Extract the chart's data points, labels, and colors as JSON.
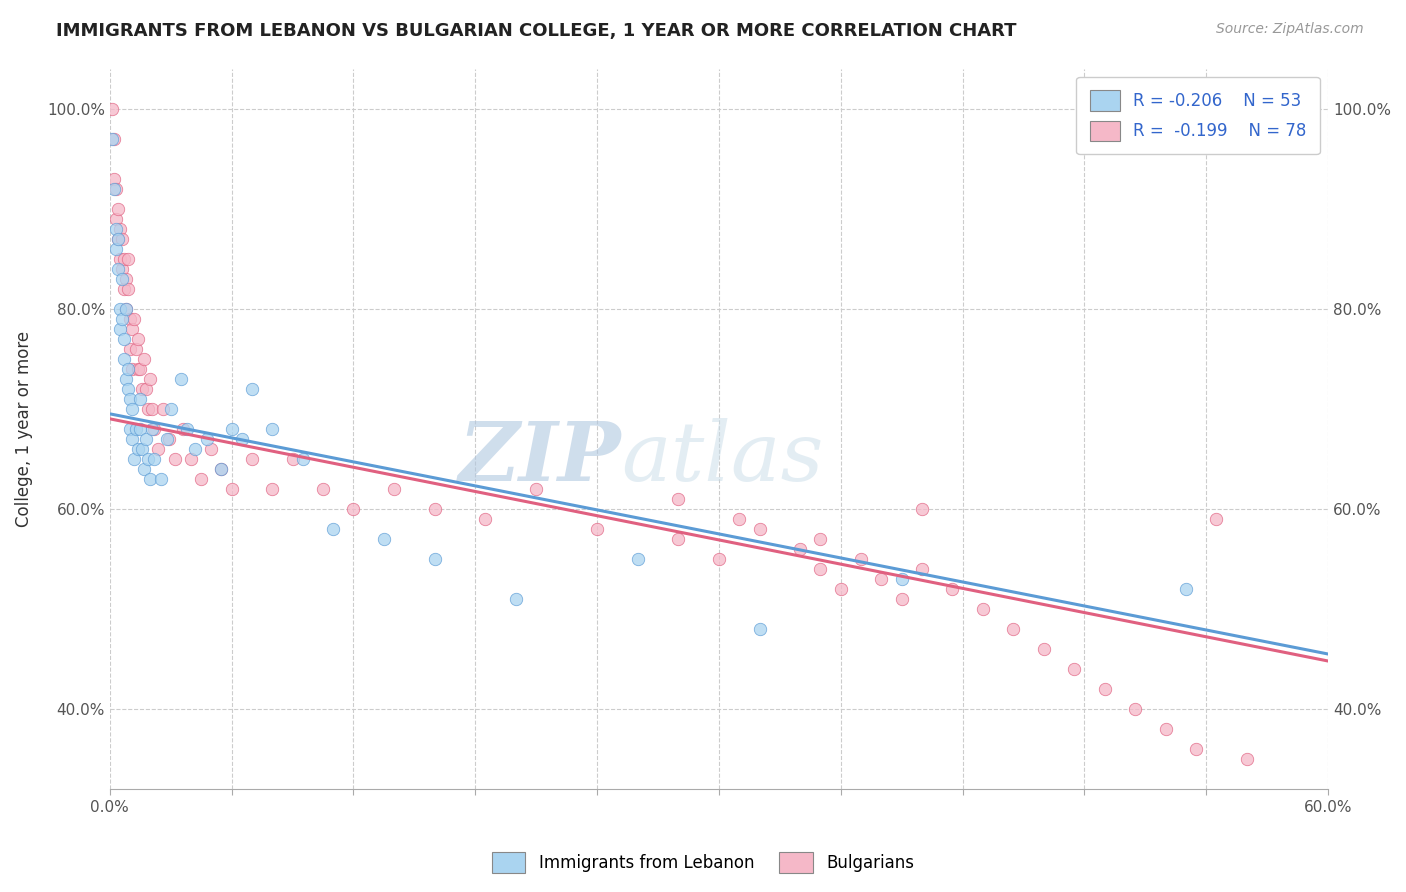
{
  "title": "IMMIGRANTS FROM LEBANON VS BULGARIAN COLLEGE, 1 YEAR OR MORE CORRELATION CHART",
  "source_text": "Source: ZipAtlas.com",
  "ylabel": "College, 1 year or more",
  "legend_labels": [
    "Immigrants from Lebanon",
    "Bulgarians"
  ],
  "legend_r": [
    "R = -0.206",
    "R =  -0.199"
  ],
  "legend_n": [
    "N = 53",
    "N = 78"
  ],
  "xlim": [
    0.0,
    0.6
  ],
  "ylim": [
    0.32,
    1.04
  ],
  "xticks": [
    0.0,
    0.06,
    0.12,
    0.18,
    0.24,
    0.3,
    0.36,
    0.42,
    0.48,
    0.54,
    0.6
  ],
  "xticklabels_show": [
    "0.0%",
    "",
    "",
    "",
    "",
    "",
    "",
    "",
    "",
    "",
    "60.0%"
  ],
  "yticks": [
    0.4,
    0.6,
    0.8,
    1.0
  ],
  "yticklabels": [
    "40.0%",
    "60.0%",
    "80.0%",
    "100.0%"
  ],
  "color_blue": "#aad4f0",
  "color_pink": "#f5b8c8",
  "color_line_blue": "#5b9bd5",
  "color_line_pink": "#e06080",
  "watermark_zip": "ZIP",
  "watermark_atlas": "atlas",
  "blue_scatter_x": [
    0.001,
    0.002,
    0.003,
    0.003,
    0.004,
    0.004,
    0.005,
    0.005,
    0.006,
    0.006,
    0.007,
    0.007,
    0.008,
    0.008,
    0.009,
    0.009,
    0.01,
    0.01,
    0.011,
    0.011,
    0.012,
    0.013,
    0.014,
    0.015,
    0.015,
    0.016,
    0.017,
    0.018,
    0.019,
    0.02,
    0.021,
    0.022,
    0.025,
    0.028,
    0.03,
    0.035,
    0.038,
    0.042,
    0.048,
    0.055,
    0.06,
    0.065,
    0.07,
    0.08,
    0.095,
    0.11,
    0.135,
    0.16,
    0.2,
    0.26,
    0.32,
    0.39,
    0.53
  ],
  "blue_scatter_y": [
    0.97,
    0.92,
    0.88,
    0.86,
    0.87,
    0.84,
    0.8,
    0.78,
    0.83,
    0.79,
    0.77,
    0.75,
    0.73,
    0.8,
    0.74,
    0.72,
    0.71,
    0.68,
    0.7,
    0.67,
    0.65,
    0.68,
    0.66,
    0.71,
    0.68,
    0.66,
    0.64,
    0.67,
    0.65,
    0.63,
    0.68,
    0.65,
    0.63,
    0.67,
    0.7,
    0.73,
    0.68,
    0.66,
    0.67,
    0.64,
    0.68,
    0.67,
    0.72,
    0.68,
    0.65,
    0.58,
    0.57,
    0.55,
    0.51,
    0.55,
    0.48,
    0.53,
    0.52
  ],
  "pink_scatter_x": [
    0.001,
    0.002,
    0.002,
    0.003,
    0.003,
    0.004,
    0.004,
    0.005,
    0.005,
    0.006,
    0.006,
    0.007,
    0.007,
    0.008,
    0.008,
    0.009,
    0.009,
    0.01,
    0.01,
    0.011,
    0.011,
    0.012,
    0.013,
    0.014,
    0.014,
    0.015,
    0.016,
    0.017,
    0.018,
    0.019,
    0.02,
    0.021,
    0.022,
    0.024,
    0.026,
    0.029,
    0.032,
    0.036,
    0.04,
    0.045,
    0.05,
    0.055,
    0.06,
    0.07,
    0.08,
    0.09,
    0.105,
    0.12,
    0.14,
    0.16,
    0.185,
    0.21,
    0.24,
    0.28,
    0.31,
    0.35,
    0.4,
    0.28,
    0.3,
    0.32,
    0.34,
    0.35,
    0.36,
    0.37,
    0.38,
    0.39,
    0.4,
    0.415,
    0.43,
    0.445,
    0.46,
    0.475,
    0.49,
    0.505,
    0.52,
    0.535,
    0.545,
    0.56
  ],
  "pink_scatter_y": [
    1.0,
    0.97,
    0.93,
    0.92,
    0.89,
    0.87,
    0.9,
    0.88,
    0.85,
    0.87,
    0.84,
    0.82,
    0.85,
    0.83,
    0.8,
    0.85,
    0.82,
    0.79,
    0.76,
    0.78,
    0.74,
    0.79,
    0.76,
    0.74,
    0.77,
    0.74,
    0.72,
    0.75,
    0.72,
    0.7,
    0.73,
    0.7,
    0.68,
    0.66,
    0.7,
    0.67,
    0.65,
    0.68,
    0.65,
    0.63,
    0.66,
    0.64,
    0.62,
    0.65,
    0.62,
    0.65,
    0.62,
    0.6,
    0.62,
    0.6,
    0.59,
    0.62,
    0.58,
    0.61,
    0.59,
    0.57,
    0.6,
    0.57,
    0.55,
    0.58,
    0.56,
    0.54,
    0.52,
    0.55,
    0.53,
    0.51,
    0.54,
    0.52,
    0.5,
    0.48,
    0.46,
    0.44,
    0.42,
    0.4,
    0.38,
    0.36,
    0.59,
    0.35
  ],
  "blue_line_x": [
    0.0,
    0.6
  ],
  "blue_line_y": [
    0.695,
    0.455
  ],
  "pink_line_x": [
    0.0,
    0.6
  ],
  "pink_line_y": [
    0.69,
    0.448
  ],
  "background_color": "#ffffff",
  "grid_color": "#cccccc"
}
